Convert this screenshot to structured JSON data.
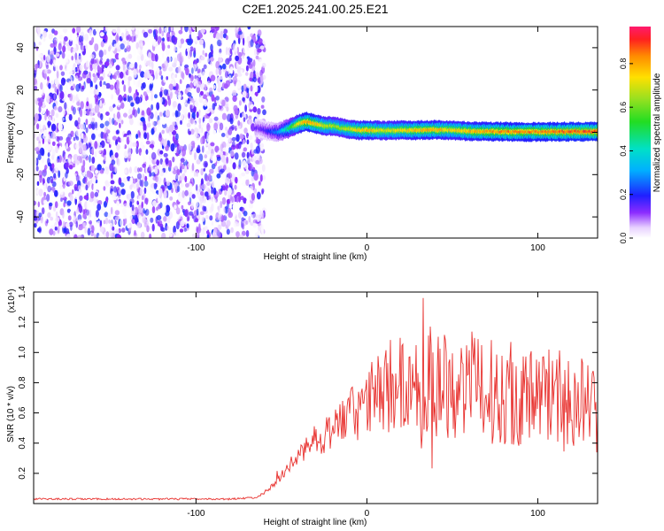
{
  "title": "C2E1.2025.241.00.25.E21",
  "chart_data": [
    {
      "type": "heatmap",
      "xlabel": "Height of straight line (km)",
      "ylabel": "Frequency (Hz)",
      "xlim": [
        -195,
        135
      ],
      "ylim": [
        -50,
        50
      ],
      "xticks": [
        -100,
        0,
        100
      ],
      "yticks": [
        -40,
        -20,
        0,
        20,
        40
      ],
      "colorbar": {
        "label": "Normalized spectral amplitude",
        "range": [
          0,
          0.97
        ],
        "ticks": [
          0.0,
          0.2,
          0.4,
          0.6,
          0.8
        ]
      },
      "noise_region_x": [
        -195,
        -63
      ],
      "signal_trace": {
        "x": [
          -63,
          -58,
          -52,
          -45,
          -40,
          -35,
          -30,
          -25,
          -20,
          -15,
          -10,
          -5,
          0,
          10,
          20,
          30,
          40,
          50,
          60,
          80,
          100,
          120,
          135
        ],
        "frequency": [
          2,
          0.5,
          0,
          2,
          4,
          5,
          4,
          3,
          3,
          2,
          1.5,
          1,
          1,
          0.8,
          1,
          1,
          1.2,
          1,
          0.5,
          0.3,
          0.2,
          0.3,
          0.3
        ],
        "peak_amplitude": [
          0.15,
          0.2,
          0.3,
          0.55,
          0.8,
          0.9,
          0.85,
          0.75,
          0.7,
          0.7,
          0.75,
          0.8,
          0.85,
          0.75,
          0.8,
          0.85,
          0.85,
          0.8,
          0.85,
          0.9,
          0.9,
          0.95,
          0.95
        ]
      }
    },
    {
      "type": "line",
      "xlabel": "Height of straight line (km)",
      "ylabel": "SNR (10 * v/v)",
      "scale_label": "(x10⁴)",
      "xlim": [
        -195,
        135
      ],
      "ylim": [
        0,
        1.4
      ],
      "xticks": [
        -100,
        0,
        100
      ],
      "yticks": [
        0.2,
        0.4,
        0.6,
        0.8,
        1.0,
        1.2,
        1.4
      ],
      "color": "#e8322f",
      "series": [
        {
          "x": [
            -195,
            -170,
            -140,
            -110,
            -80,
            -65,
            -60,
            -55,
            -50,
            -45,
            -40,
            -35,
            -30,
            -25,
            -20,
            -15,
            -10,
            -5,
            0,
            5,
            10,
            20,
            30,
            40,
            50,
            60,
            70,
            80,
            90,
            100,
            110,
            120,
            130,
            135
          ],
          "values": [
            0.03,
            0.03,
            0.03,
            0.03,
            0.03,
            0.04,
            0.07,
            0.12,
            0.18,
            0.25,
            0.32,
            0.38,
            0.42,
            0.45,
            0.5,
            0.55,
            0.58,
            0.62,
            0.68,
            0.72,
            0.75,
            0.78,
            0.8,
            0.82,
            0.8,
            0.78,
            0.75,
            0.72,
            0.7,
            0.72,
            0.72,
            0.7,
            0.65,
            0.6
          ]
        }
      ]
    }
  ]
}
